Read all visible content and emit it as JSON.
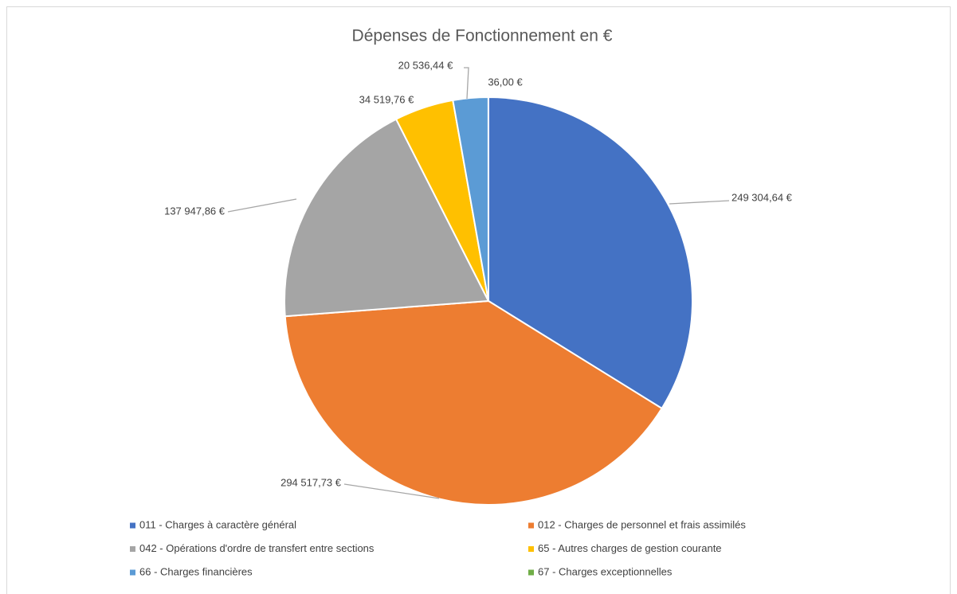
{
  "chart_data": {
    "type": "pie",
    "title": "Dépenses de Fonctionnement en €",
    "categories": [
      "011 - Charges à caractère général",
      "012 - Charges de personnel et frais assimilés",
      "042 - Opérations d'ordre de transfert entre sections",
      "65 - Autres charges de gestion courante",
      "66 - Charges financières",
      "67 - Charges exceptionnelles"
    ],
    "values": [
      249304.64,
      294517.73,
      137947.86,
      34519.76,
      20536.44,
      36.0
    ],
    "value_labels": [
      "249 304,64 €",
      "294 517,73 €",
      "137 947,86 €",
      "34 519,76 €",
      "20 536,44 €",
      "36,00 €"
    ],
    "colors": [
      "#4472c4",
      "#ed7d31",
      "#a5a5a5",
      "#ffc000",
      "#5b9bd5",
      "#70ad47"
    ],
    "legend": "bottom"
  }
}
